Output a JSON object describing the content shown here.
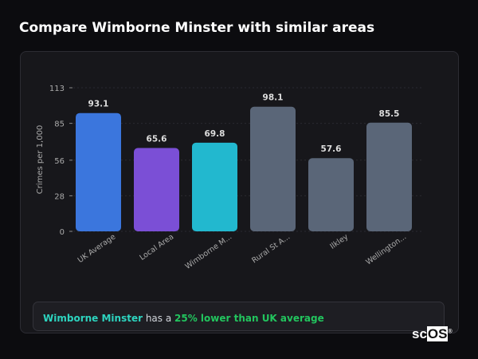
{
  "title": "Compare Wimborne Minster with similar areas",
  "chart_data": {
    "type": "bar",
    "categories": [
      "UK Average",
      "Local Area",
      "Wimborne M...",
      "Rural St A...",
      "Ilkley",
      "Wellington..."
    ],
    "values": [
      93.1,
      65.6,
      69.8,
      98.1,
      57.6,
      85.5
    ],
    "colors": [
      "#3b76dd",
      "#7b4fd6",
      "#22b8cf",
      "#5a6678",
      "#5a6678",
      "#5a6678"
    ],
    "ylabel": "Crimes per 1,000",
    "yticks": [
      0,
      28,
      56,
      85,
      113
    ],
    "ylim": [
      0,
      113
    ],
    "grid": true
  },
  "footer": {
    "place": "Wimborne Minster",
    "middle": " has a ",
    "comparison": "25% lower than UK average"
  },
  "logo": "scOS"
}
